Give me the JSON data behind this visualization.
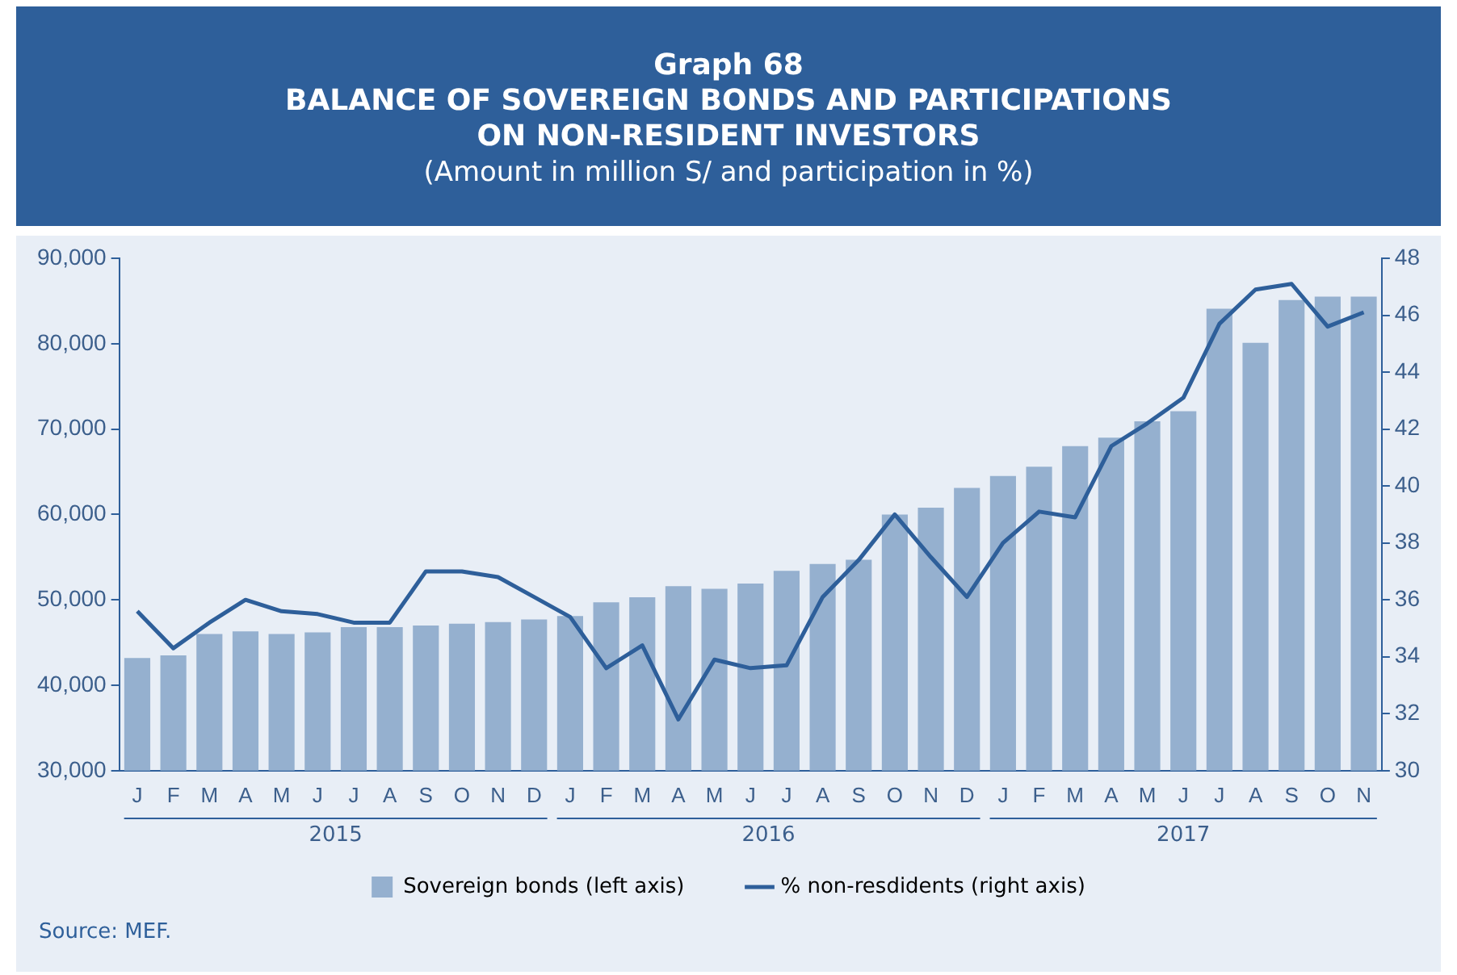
{
  "chart_data": {
    "type": "bar",
    "title": "Graph 68\nBALANCE OF SOVEREIGN BONDS AND PARTICIPATIONS\nON NON-RESIDENT INVESTORS",
    "subtitle": "(Amount in million S/ and participation in %)",
    "categories": [
      "J",
      "F",
      "M",
      "A",
      "M",
      "J",
      "J",
      "A",
      "S",
      "O",
      "N",
      "D",
      "J",
      "F",
      "M",
      "A",
      "M",
      "J",
      "J",
      "A",
      "S",
      "O",
      "N",
      "D",
      "J",
      "F",
      "M",
      "A",
      "M",
      "J",
      "J",
      "A",
      "S",
      "O",
      "N"
    ],
    "series": [
      {
        "name": "Sovereign bonds (left axis)",
        "color": "#95b0cf",
        "values": [
          43200,
          43500,
          46000,
          46300,
          46000,
          46200,
          46800,
          46800,
          47000,
          47200,
          47400,
          47700,
          48100,
          49700,
          50300,
          51600,
          51300,
          51900,
          53400,
          54200,
          54700,
          60000,
          60800,
          63100,
          64500,
          65600,
          68000,
          69000,
          70900,
          72100,
          84100,
          80100,
          85100,
          85500,
          85500
        ]
      },
      {
        "name": "% non-resdidents (right axis)",
        "type": "line",
        "axis": "y2",
        "color": "#2e5f9a",
        "values": [
          35.6,
          34.3,
          35.2,
          36.0,
          35.6,
          35.5,
          35.2,
          35.2,
          37.0,
          37.0,
          36.8,
          36.1,
          35.4,
          33.6,
          34.4,
          31.8,
          33.9,
          33.6,
          33.7,
          36.1,
          37.4,
          39.0,
          37.5,
          36.1,
          38.0,
          39.1,
          38.9,
          41.4,
          42.2,
          43.1,
          45.7,
          46.9,
          47.1,
          45.6,
          46.1
        ]
      }
    ],
    "ylim": [
      30000,
      90000
    ],
    "yticks": [
      {
        "value": 30000,
        "label": "30,000"
      },
      {
        "value": 40000,
        "label": "40,000"
      },
      {
        "value": 50000,
        "label": "50,000"
      },
      {
        "value": 60000,
        "label": "60,000"
      },
      {
        "value": 70000,
        "label": "70,000"
      },
      {
        "value": 80000,
        "label": "80,000"
      },
      {
        "value": 90000,
        "label": "90,000"
      }
    ],
    "y2lim": [
      30,
      48
    ],
    "y2ticks": [
      30,
      32,
      34,
      36,
      38,
      40,
      42,
      44,
      46,
      48
    ],
    "grid": false,
    "legend": "bottom",
    "marker": "none",
    "annotations": [
      "2015",
      "2016",
      "2017",
      "Source: MEF."
    ]
  }
}
